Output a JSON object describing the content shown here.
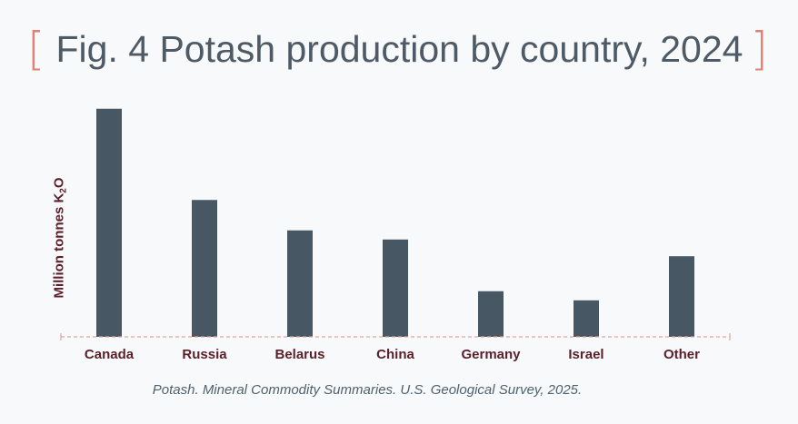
{
  "header": {
    "title": "Fig. 4 Potash production by country, 2024",
    "bracket_left": "[",
    "bracket_right": "]"
  },
  "chart_data": {
    "type": "bar",
    "title": "Fig. 4 Potash production by country, 2024",
    "categories": [
      "Canada",
      "Russia",
      "Belarus",
      "China",
      "Germany",
      "Israel",
      "Other"
    ],
    "values": [
      15,
      9,
      7,
      6.4,
      3,
      2.4,
      5.3
    ],
    "xlabel": "",
    "ylabel": {
      "prefix": "Million tonnes K",
      "subscript": "2",
      "suffix": "O"
    },
    "ylim": [
      0,
      16
    ],
    "grid": false,
    "legend": "none"
  },
  "footer": {
    "source": "Potash. Mineral Commodity Summaries. U.S. Geological Survey, 2025."
  },
  "colors": {
    "bar": "#475763",
    "bracket": "#e08173",
    "axis": "#e6a49a",
    "label": "#5b1f2a",
    "title": "#4e5a66",
    "source": "#50616e"
  }
}
